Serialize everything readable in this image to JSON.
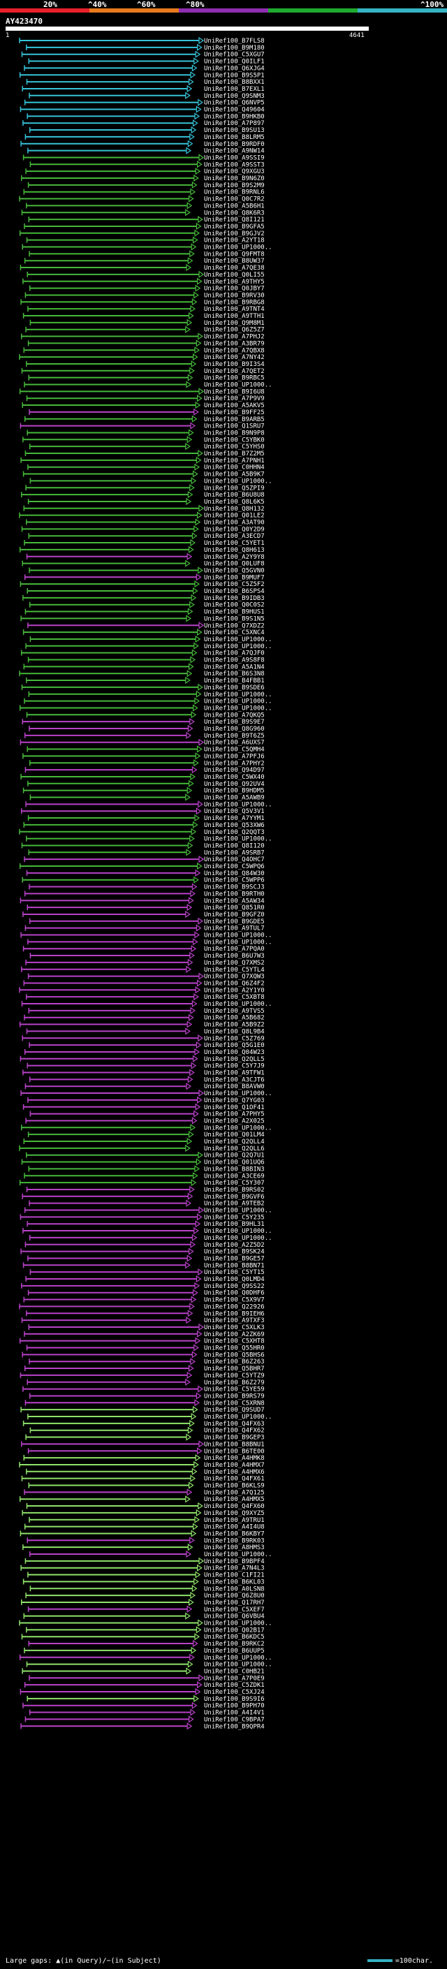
{
  "scale": {
    "labels": [
      "20%",
      "^40%",
      "^60%",
      "^80%",
      "^100%"
    ],
    "colors": [
      "#e8202a",
      "#e87a1e",
      "#8e2fb0",
      "#1faa2f",
      "#36b3c4"
    ]
  },
  "query": {
    "id": "AY423470",
    "start": "1",
    "end": "4641"
  },
  "colors": {
    "cyan": "#36c3d8",
    "green": "#46b83a",
    "magenta": "#b842c8",
    "lightgreen": "#8fe36a"
  },
  "hits": [
    {
      "id": "UniRef100_B7FLS8",
      "c": "cyan"
    },
    {
      "id": "UniRef100_B9M180",
      "c": "cyan"
    },
    {
      "id": "UniRef100_C5XGU7",
      "c": "cyan"
    },
    {
      "id": "UniRef100_Q0ILF1",
      "c": "cyan"
    },
    {
      "id": "UniRef100_Q6XJG4",
      "c": "cyan"
    },
    {
      "id": "UniRef100_B9S5P1",
      "c": "cyan"
    },
    {
      "id": "UniRef100_B8BXX1",
      "c": "cyan"
    },
    {
      "id": "UniRef100_B7EXL1",
      "c": "cyan"
    },
    {
      "id": "UniRef100_Q9SNM3",
      "c": "cyan"
    },
    {
      "id": "UniRef100_Q6NVP5",
      "c": "cyan"
    },
    {
      "id": "UniRef100_Q49604",
      "c": "cyan"
    },
    {
      "id": "UniRef100_B9HKB0",
      "c": "cyan"
    },
    {
      "id": "UniRef100_A7P897",
      "c": "cyan"
    },
    {
      "id": "UniRef100_B9SU13",
      "c": "cyan"
    },
    {
      "id": "UniRef100_B8LRM5",
      "c": "cyan"
    },
    {
      "id": "UniRef100_B9RDF0",
      "c": "cyan"
    },
    {
      "id": "UniRef100_A9NW14",
      "c": "cyan"
    },
    {
      "id": "UniRef100_A9SSI9",
      "c": "green"
    },
    {
      "id": "UniRef100_A9SST3",
      "c": "green"
    },
    {
      "id": "UniRef100_Q9XGU3",
      "c": "green"
    },
    {
      "id": "UniRef100_B9N6Z0",
      "c": "green"
    },
    {
      "id": "UniRef100_B9S2M9",
      "c": "green"
    },
    {
      "id": "UniRef100_B9RNL6",
      "c": "green"
    },
    {
      "id": "UniRef100_Q0C7R2",
      "c": "green"
    },
    {
      "id": "UniRef100_A5B6H1",
      "c": "green"
    },
    {
      "id": "UniRef100_Q8K6R3",
      "c": "green"
    },
    {
      "id": "UniRef100_Q8I121",
      "c": "green"
    },
    {
      "id": "UniRef100_B9GFA5",
      "c": "green"
    },
    {
      "id": "UniRef100_B9GJV2",
      "c": "green"
    },
    {
      "id": "UniRef100_A2YT18",
      "c": "green"
    },
    {
      "id": "UniRef100_UP1000..",
      "c": "green"
    },
    {
      "id": "UniRef100_Q9FMT8",
      "c": "green"
    },
    {
      "id": "UniRef100_B8UW37",
      "c": "green"
    },
    {
      "id": "UniRef100_A7QE38",
      "c": "green"
    },
    {
      "id": "UniRef100_Q0LI55",
      "c": "green"
    },
    {
      "id": "UniRef100_A9THY5",
      "c": "green"
    },
    {
      "id": "UniRef100_Q0JBY7",
      "c": "green"
    },
    {
      "id": "UniRef100_B9RV30",
      "c": "green"
    },
    {
      "id": "UniRef100_B9RBG8",
      "c": "green"
    },
    {
      "id": "UniRef100_A9TNT4",
      "c": "green"
    },
    {
      "id": "UniRef100_A9TTH1",
      "c": "green"
    },
    {
      "id": "UniRef100_Q9M8M1",
      "c": "green"
    },
    {
      "id": "UniRef100_Q6Z5Z7",
      "c": "green"
    },
    {
      "id": "UniRef100_A7PHJ2",
      "c": "green"
    },
    {
      "id": "UniRef100_A3BR79",
      "c": "green"
    },
    {
      "id": "UniRef100_A7QBX8",
      "c": "green"
    },
    {
      "id": "UniRef100_A7NY42",
      "c": "green"
    },
    {
      "id": "UniRef100_B9I3S4",
      "c": "green"
    },
    {
      "id": "UniRef100_A7QET2",
      "c": "green"
    },
    {
      "id": "UniRef100_B9RBC5",
      "c": "green"
    },
    {
      "id": "UniRef100_UP1000..",
      "c": "green"
    },
    {
      "id": "UniRef100_B9I6U8",
      "c": "green"
    },
    {
      "id": "UniRef100_A7P9V9",
      "c": "green"
    },
    {
      "id": "UniRef100_A5AKV5",
      "c": "green"
    },
    {
      "id": "UniRef100_B9FF25",
      "c": "magenta"
    },
    {
      "id": "UniRef100_B9ARB5",
      "c": "green"
    },
    {
      "id": "UniRef100_Q1SRU7",
      "c": "magenta"
    },
    {
      "id": "UniRef100_B9N9P8",
      "c": "green"
    },
    {
      "id": "UniRef100_C5YBK0",
      "c": "green"
    },
    {
      "id": "UniRef100_C5YHS0",
      "c": "green"
    },
    {
      "id": "UniRef100_B7Z2M5",
      "c": "green"
    },
    {
      "id": "UniRef100_A7PNH1",
      "c": "green"
    },
    {
      "id": "UniRef100_C0HHN4",
      "c": "green"
    },
    {
      "id": "UniRef100_A5B9K7",
      "c": "green"
    },
    {
      "id": "UniRef100_UP1000..",
      "c": "green"
    },
    {
      "id": "UniRef100_Q5ZPI9",
      "c": "green"
    },
    {
      "id": "UniRef100_B6U8U8",
      "c": "green"
    },
    {
      "id": "UniRef100_Q8L6K5",
      "c": "green"
    },
    {
      "id": "UniRef100_Q8H132",
      "c": "green"
    },
    {
      "id": "UniRef100_Q01LE2",
      "c": "green"
    },
    {
      "id": "UniRef100_A3AT90",
      "c": "green"
    },
    {
      "id": "UniRef100_Q0Y2D9",
      "c": "green"
    },
    {
      "id": "UniRef100_A3ECD7",
      "c": "green"
    },
    {
      "id": "UniRef100_C5YET1",
      "c": "green"
    },
    {
      "id": "UniRef100_Q8H613",
      "c": "green"
    },
    {
      "id": "UniRef100_A2Y9Y8",
      "c": "magenta"
    },
    {
      "id": "UniRef100_Q0LUF8",
      "c": "green"
    },
    {
      "id": "UniRef100_Q5GVN0",
      "c": "green"
    },
    {
      "id": "UniRef100_B9MUF7",
      "c": "magenta"
    },
    {
      "id": "UniRef100_C5Z5F2",
      "c": "green"
    },
    {
      "id": "UniRef100_B6SPS4",
      "c": "green"
    },
    {
      "id": "UniRef100_B9IDB3",
      "c": "green"
    },
    {
      "id": "UniRef100_Q0C0S2",
      "c": "green"
    },
    {
      "id": "UniRef100_B9HUS1",
      "c": "green"
    },
    {
      "id": "UniRef100_B9S1N5",
      "c": "green"
    },
    {
      "id": "UniRef100_Q7XDZ2",
      "c": "magenta"
    },
    {
      "id": "UniRef100_C5XNC4",
      "c": "green"
    },
    {
      "id": "UniRef100_UP1000..",
      "c": "green"
    },
    {
      "id": "UniRef100_UP1000..",
      "c": "green"
    },
    {
      "id": "UniRef100_A7QJF0",
      "c": "green"
    },
    {
      "id": "UniRef100_A9S8F8",
      "c": "green"
    },
    {
      "id": "UniRef100_A5A1N4",
      "c": "green"
    },
    {
      "id": "UniRef100_B6S3N8",
      "c": "green"
    },
    {
      "id": "UniRef100_B4FBB1",
      "c": "green"
    },
    {
      "id": "UniRef100_B9SDE6",
      "c": "green"
    },
    {
      "id": "UniRef100_UP1000..",
      "c": "green"
    },
    {
      "id": "UniRef100_UP1000..",
      "c": "green"
    },
    {
      "id": "UniRef100_UP1000..",
      "c": "green"
    },
    {
      "id": "UniRef100_A7QKQ5",
      "c": "green"
    },
    {
      "id": "UniRef100_B9S9E7",
      "c": "magenta"
    },
    {
      "id": "UniRef100_Q8G960",
      "c": "magenta"
    },
    {
      "id": "UniRef100_B9T6Z5",
      "c": "magenta"
    },
    {
      "id": "UniRef100_A6UXS7",
      "c": "magenta"
    },
    {
      "id": "UniRef100_C5QMH4",
      "c": "green"
    },
    {
      "id": "UniRef100_A7PFJ6",
      "c": "green"
    },
    {
      "id": "UniRef100_A7PHY2",
      "c": "green"
    },
    {
      "id": "UniRef100_Q94D97",
      "c": "magenta"
    },
    {
      "id": "UniRef100_C5WX40",
      "c": "green"
    },
    {
      "id": "UniRef100_Q92UV4",
      "c": "green"
    },
    {
      "id": "UniRef100_B9HDM5",
      "c": "green"
    },
    {
      "id": "UniRef100_A5AWB9",
      "c": "green"
    },
    {
      "id": "UniRef100_UP1000..",
      "c": "magenta"
    },
    {
      "id": "UniRef100_Q5V3V1",
      "c": "magenta"
    },
    {
      "id": "UniRef100_A7YYM1",
      "c": "green"
    },
    {
      "id": "UniRef100_Q53XW6",
      "c": "green"
    },
    {
      "id": "UniRef100_Q2QQT3",
      "c": "green"
    },
    {
      "id": "UniRef100_UP1000..",
      "c": "green"
    },
    {
      "id": "UniRef100_Q8I120",
      "c": "green"
    },
    {
      "id": "UniRef100_A9SRB7",
      "c": "green"
    },
    {
      "id": "UniRef100_Q4OHC7",
      "c": "magenta"
    },
    {
      "id": "UniRef100_C5WPQ6",
      "c": "green"
    },
    {
      "id": "UniRef100_Q84W30",
      "c": "magenta"
    },
    {
      "id": "UniRef100_C5WPP6",
      "c": "green"
    },
    {
      "id": "UniRef100_B9SCJ3",
      "c": "magenta"
    },
    {
      "id": "UniRef100_B9RTH0",
      "c": "magenta"
    },
    {
      "id": "UniRef100_A5AW34",
      "c": "magenta"
    },
    {
      "id": "UniRef100_Q851R0",
      "c": "magenta"
    },
    {
      "id": "UniRef100_B9GFZ0",
      "c": "magenta"
    },
    {
      "id": "UniRef100_B9GDE5",
      "c": "magenta"
    },
    {
      "id": "UniRef100_A9TUL7",
      "c": "magenta"
    },
    {
      "id": "UniRef100_UP1000..",
      "c": "magenta"
    },
    {
      "id": "UniRef100_UP1000..",
      "c": "magenta"
    },
    {
      "id": "UniRef100_A7PQA0",
      "c": "magenta"
    },
    {
      "id": "UniRef100_B6U7W3",
      "c": "magenta"
    },
    {
      "id": "UniRef100_Q7XMS2",
      "c": "magenta"
    },
    {
      "id": "UniRef100_C5YTL4",
      "c": "magenta"
    },
    {
      "id": "UniRef100_Q7XQW3",
      "c": "magenta"
    },
    {
      "id": "UniRef100_Q6Z4F2",
      "c": "magenta"
    },
    {
      "id": "UniRef100_A2Y1Y0",
      "c": "magenta"
    },
    {
      "id": "UniRef100_C5XBT8",
      "c": "magenta"
    },
    {
      "id": "UniRef100_UP1000..",
      "c": "magenta"
    },
    {
      "id": "UniRef100_A9TVS5",
      "c": "magenta"
    },
    {
      "id": "UniRef100_A5B682",
      "c": "magenta"
    },
    {
      "id": "UniRef100_A5B9Z2",
      "c": "magenta"
    },
    {
      "id": "UniRef100_Q8L9B4",
      "c": "magenta"
    },
    {
      "id": "UniRef100_C5Z769",
      "c": "magenta"
    },
    {
      "id": "UniRef100_Q5G1E0",
      "c": "magenta"
    },
    {
      "id": "UniRef100_Q04W23",
      "c": "magenta"
    },
    {
      "id": "UniRef100_Q2QLL5",
      "c": "magenta"
    },
    {
      "id": "UniRef100_C5Y7J9",
      "c": "magenta"
    },
    {
      "id": "UniRef100_A9TFW1",
      "c": "magenta"
    },
    {
      "id": "UniRef100_A3CJT6",
      "c": "magenta"
    },
    {
      "id": "UniRef100_B8AVW0",
      "c": "magenta"
    },
    {
      "id": "UniRef100_UP1000..",
      "c": "magenta"
    },
    {
      "id": "UniRef100_Q7YG03",
      "c": "magenta"
    },
    {
      "id": "UniRef100_Q1OF41",
      "c": "magenta"
    },
    {
      "id": "UniRef100_A7PHY5",
      "c": "magenta"
    },
    {
      "id": "UniRef100_A2X025",
      "c": "magenta"
    },
    {
      "id": "UniRef100_UP1000..",
      "c": "green"
    },
    {
      "id": "UniRef100_Q01LM4",
      "c": "green"
    },
    {
      "id": "UniRef100_Q2QLL4",
      "c": "green"
    },
    {
      "id": "UniRef100_Q2QLL6",
      "c": "green"
    },
    {
      "id": "UniRef100_Q2Q7U1",
      "c": "green"
    },
    {
      "id": "UniRef100_Q01UQ6",
      "c": "green"
    },
    {
      "id": "UniRef100_B8BIN3",
      "c": "green"
    },
    {
      "id": "UniRef100_A3CE69",
      "c": "green"
    },
    {
      "id": "UniRef100_C5Y307",
      "c": "green"
    },
    {
      "id": "UniRef100_B9RS02",
      "c": "magenta"
    },
    {
      "id": "UniRef100_B9GVF6",
      "c": "magenta"
    },
    {
      "id": "UniRef100_A9TEB2",
      "c": "magenta"
    },
    {
      "id": "UniRef100_UP1000..",
      "c": "magenta"
    },
    {
      "id": "UniRef100_C5Y235",
      "c": "magenta"
    },
    {
      "id": "UniRef100_B9HL31",
      "c": "magenta"
    },
    {
      "id": "UniRef100_UP1000..",
      "c": "magenta"
    },
    {
      "id": "UniRef100_UP1000..",
      "c": "magenta"
    },
    {
      "id": "UniRef100_A2Z5D2",
      "c": "magenta"
    },
    {
      "id": "UniRef100_B9SK24",
      "c": "magenta"
    },
    {
      "id": "UniRef100_B9GE57",
      "c": "magenta"
    },
    {
      "id": "UniRef100_B8BN71",
      "c": "magenta"
    },
    {
      "id": "UniRef100_C5YT15",
      "c": "magenta"
    },
    {
      "id": "UniRef100_Q0LMD4",
      "c": "magenta"
    },
    {
      "id": "UniRef100_Q9SS22",
      "c": "magenta"
    },
    {
      "id": "UniRef100_Q0DHF6",
      "c": "magenta"
    },
    {
      "id": "UniRef100_C5X9V7",
      "c": "magenta"
    },
    {
      "id": "UniRef100_Q22926",
      "c": "magenta"
    },
    {
      "id": "UniRef100_B9IEH6",
      "c": "magenta"
    },
    {
      "id": "UniRef100_A9TXF3",
      "c": "magenta"
    },
    {
      "id": "UniRef100_C5XLK3",
      "c": "magenta"
    },
    {
      "id": "UniRef100_A2ZK69",
      "c": "magenta"
    },
    {
      "id": "UniRef100_C5XHT8",
      "c": "magenta"
    },
    {
      "id": "UniRef100_Q55HR0",
      "c": "magenta"
    },
    {
      "id": "UniRef100_Q5BHS6",
      "c": "magenta"
    },
    {
      "id": "UniRef100_B6Z263",
      "c": "magenta"
    },
    {
      "id": "UniRef100_Q5BHR7",
      "c": "magenta"
    },
    {
      "id": "UniRef100_C5YTZ9",
      "c": "magenta"
    },
    {
      "id": "UniRef100_B6Z279",
      "c": "magenta"
    },
    {
      "id": "UniRef100_C5YE59",
      "c": "magenta"
    },
    {
      "id": "UniRef100_B9RS79",
      "c": "magenta"
    },
    {
      "id": "UniRef100_C5XRN8",
      "c": "magenta"
    },
    {
      "id": "UniRef100_Q9SUD7",
      "c": "lightgreen"
    },
    {
      "id": "UniRef100_UP1000..",
      "c": "lightgreen"
    },
    {
      "id": "UniRef100_Q4FX63",
      "c": "lightgreen"
    },
    {
      "id": "UniRef100_Q4FX62",
      "c": "lightgreen"
    },
    {
      "id": "UniRef100_B9GEP3",
      "c": "lightgreen"
    },
    {
      "id": "UniRef100_B8BNU1",
      "c": "magenta"
    },
    {
      "id": "UniRef100_B6TE00",
      "c": "magenta"
    },
    {
      "id": "UniRef100_A4HMK8",
      "c": "lightgreen"
    },
    {
      "id": "UniRef100_A4HMX7",
      "c": "lightgreen"
    },
    {
      "id": "UniRef100_A4HMX6",
      "c": "lightgreen"
    },
    {
      "id": "UniRef100_Q4FX61",
      "c": "lightgreen"
    },
    {
      "id": "UniRef100_B6KLS9",
      "c": "lightgreen"
    },
    {
      "id": "UniRef100_A7Q125",
      "c": "magenta"
    },
    {
      "id": "UniRef100_A4HMX5",
      "c": "lightgreen"
    },
    {
      "id": "UniRef100_Q4FX60",
      "c": "lightgreen"
    },
    {
      "id": "UniRef100_Q9XYZ5",
      "c": "lightgreen"
    },
    {
      "id": "UniRef100_A9TRU1",
      "c": "lightgreen"
    },
    {
      "id": "UniRef100_A4I4U8",
      "c": "lightgreen"
    },
    {
      "id": "UniRef100_B6KBY7",
      "c": "lightgreen"
    },
    {
      "id": "UniRef100_B9RK03",
      "c": "magenta"
    },
    {
      "id": "UniRef100_A8HMS3",
      "c": "lightgreen"
    },
    {
      "id": "UniRef100_UP1000..",
      "c": "magenta"
    },
    {
      "id": "UniRef100_B9BPF4",
      "c": "lightgreen"
    },
    {
      "id": "UniRef100_A7N4L3",
      "c": "lightgreen"
    },
    {
      "id": "UniRef100_C1FI21",
      "c": "lightgreen"
    },
    {
      "id": "UniRef100_B6KL03",
      "c": "lightgreen"
    },
    {
      "id": "UniRef100_A0LSN8",
      "c": "lightgreen"
    },
    {
      "id": "UniRef100_Q6Z8U0",
      "c": "lightgreen"
    },
    {
      "id": "UniRef100_Q17RH7",
      "c": "lightgreen"
    },
    {
      "id": "UniRef100_C5XEF7",
      "c": "magenta"
    },
    {
      "id": "UniRef100_Q6VBU4",
      "c": "lightgreen"
    },
    {
      "id": "UniRef100_UP1000..",
      "c": "lightgreen"
    },
    {
      "id": "UniRef100_Q02B17",
      "c": "lightgreen"
    },
    {
      "id": "UniRef100_B6KDC5",
      "c": "lightgreen"
    },
    {
      "id": "UniRef100_B9RKC2",
      "c": "magenta"
    },
    {
      "id": "UniRef100_B6UUP5",
      "c": "lightgreen"
    },
    {
      "id": "UniRef100_UP1000..",
      "c": "magenta"
    },
    {
      "id": "UniRef100_UP1000..",
      "c": "lightgreen"
    },
    {
      "id": "UniRef100_C0HB21",
      "c": "lightgreen"
    },
    {
      "id": "UniRef100_A7P0E9",
      "c": "magenta"
    },
    {
      "id": "UniRef100_C5ZDK1",
      "c": "magenta"
    },
    {
      "id": "UniRef100_C5XJ24",
      "c": "magenta"
    },
    {
      "id": "UniRef100_B9S9I6",
      "c": "lightgreen"
    },
    {
      "id": "UniRef100_B9PH70",
      "c": "magenta"
    },
    {
      "id": "UniRef100_A4I4V1",
      "c": "magenta"
    },
    {
      "id": "UniRef100_C9BPA7",
      "c": "magenta"
    },
    {
      "id": "UniRef100_B9QPR4",
      "c": "magenta"
    }
  ],
  "footer": {
    "left": "Large gaps: ▲(in Query)/−(in Subject)",
    "right": "=100char."
  }
}
